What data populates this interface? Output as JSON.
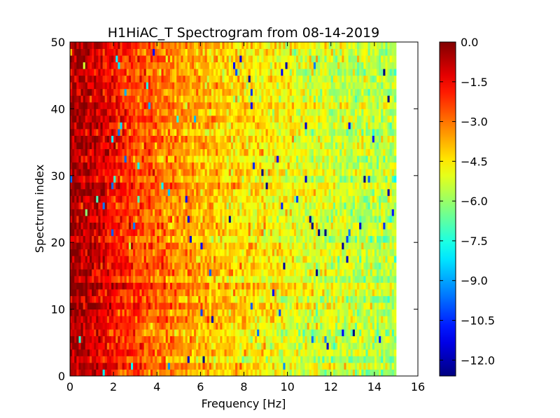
{
  "chart_data": {
    "type": "heatmap",
    "title": "H1HiAC_T Spectrogram from 08-14-2019",
    "xlabel": "Frequency [Hz]",
    "ylabel": "Spectrum index",
    "xlim": [
      0,
      16
    ],
    "ylim": [
      0,
      50
    ],
    "x_ticks": [
      0,
      2,
      4,
      6,
      8,
      10,
      12,
      14,
      16
    ],
    "y_ticks": [
      0,
      10,
      20,
      30,
      40,
      50
    ],
    "data_extent": {
      "x": [
        0,
        15
      ],
      "y": [
        0,
        50
      ]
    },
    "n_spectra": 50,
    "n_frequency_bins": 150,
    "colormap": "jet",
    "colorbar": {
      "vmin": -12.6,
      "vmax": 0.0,
      "ticks": [
        0.0,
        -1.5,
        -3.0,
        -4.5,
        -6.0,
        -7.5,
        -9.0,
        -10.5,
        -12.0
      ],
      "tick_labels": [
        "0.0",
        "−1.5",
        "−3.0",
        "−4.5",
        "−6.0",
        "−7.5",
        "−9.0",
        "−10.5",
        "−12.0"
      ]
    },
    "trend": {
      "frequency_hz": [
        0,
        1,
        2,
        3,
        4,
        5,
        6,
        8,
        10,
        12,
        15
      ],
      "mean_value": [
        -0.4,
        -0.9,
        -1.6,
        -2.3,
        -2.9,
        -3.4,
        -3.8,
        -4.4,
        -4.9,
        -5.3,
        -5.7
      ]
    },
    "grid": false
  }
}
